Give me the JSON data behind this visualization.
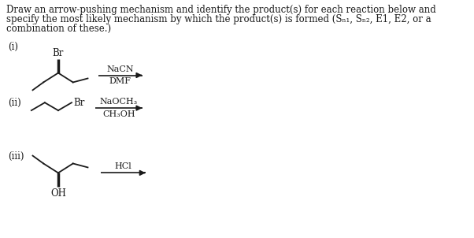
{
  "bg_color": "#ffffff",
  "label_i": "(i)",
  "label_ii": "(ii)",
  "label_iii": "(iii)",
  "reagent_i_top": "NaCN",
  "reagent_i_bot": "DMF",
  "reagent_ii_top": "NaOCH₃",
  "reagent_ii_bot": "CH₃OH",
  "reagent_iii": "HCl",
  "br_label": "Br",
  "oh_label": "OH",
  "line_color": "#1a1a1a",
  "text_color": "#1a1a1a",
  "font_size": 8.5,
  "title_font_size": 8.5,
  "title_lines": [
    "Draw an arrow-pushing mechanism and identify the product(s) for each reaction below and",
    "specify the most likely mechanism by which the product(s) is formed (Sₙ₁, Sₙ₂, E1, E2, or a",
    "combination of these.)"
  ]
}
